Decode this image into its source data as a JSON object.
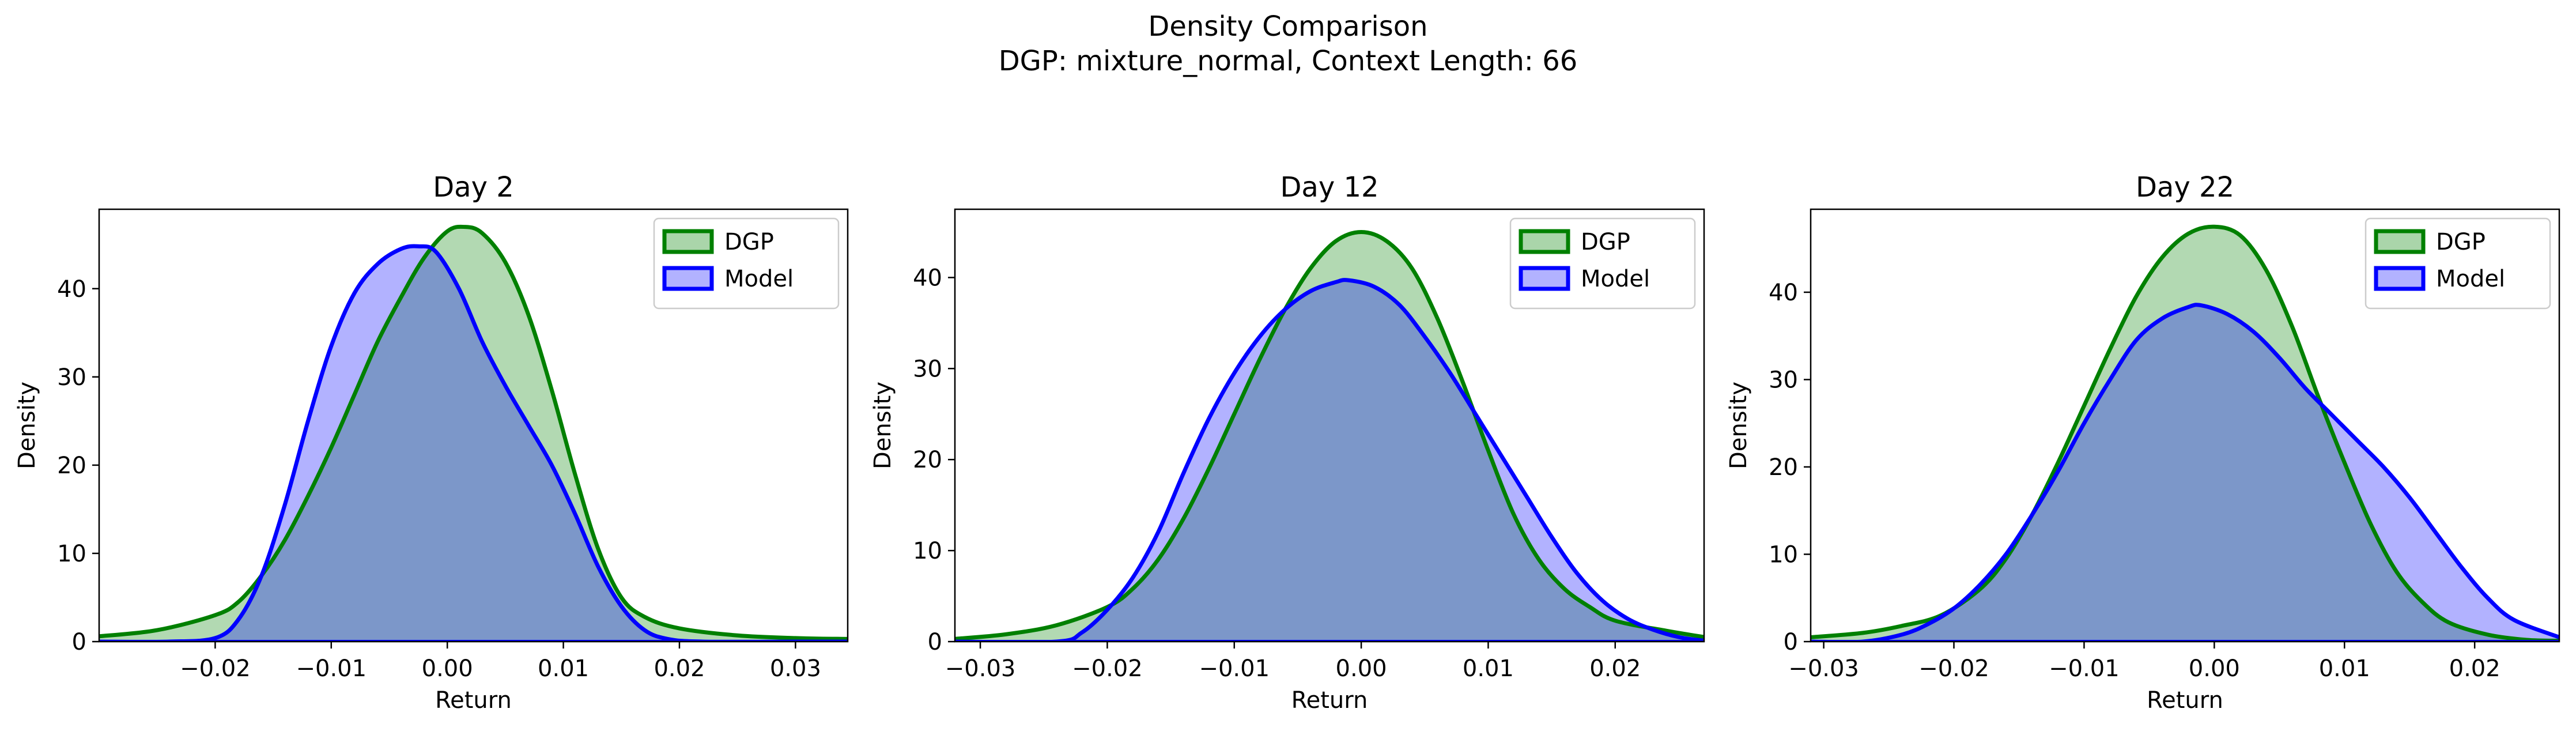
{
  "figure": {
    "title_line1": "Density Comparison",
    "title_line2": "DGP: mixture_normal, Context Length: 66"
  },
  "colors": {
    "dgp_line": "#008000",
    "dgp_fill": "#aad5aa",
    "model_line": "#0000ff",
    "model_fill": "#b2b2ff",
    "overlap_fill": "#7f97c8"
  },
  "chart_data": [
    {
      "type": "area",
      "title": "Day 2",
      "xlabel": "Return",
      "ylabel": "Density",
      "xlim": [
        -0.03,
        0.0345
      ],
      "ylim": [
        0,
        49
      ],
      "xticks": [
        -0.02,
        -0.01,
        0.0,
        0.01,
        0.02,
        0.03
      ],
      "xtick_labels": [
        "−0.02",
        "−0.01",
        "0.00",
        "0.01",
        "0.02",
        "0.03"
      ],
      "yticks": [
        0,
        10,
        20,
        30,
        40
      ],
      "grid": false,
      "legend": "top-right",
      "series": [
        {
          "name": "DGP",
          "x": [
            -0.03,
            -0.025,
            -0.02,
            -0.018,
            -0.016,
            -0.014,
            -0.012,
            -0.01,
            -0.008,
            -0.006,
            -0.004,
            -0.002,
            0.0,
            0.0015,
            0.003,
            0.005,
            0.007,
            0.009,
            0.011,
            0.013,
            0.015,
            0.017,
            0.02,
            0.025,
            0.03,
            0.0345
          ],
          "y": [
            0.6,
            1.3,
            3.0,
            4.5,
            7.5,
            11.5,
            16.5,
            22.0,
            28.0,
            34.0,
            39.0,
            43.5,
            46.5,
            47.0,
            46.3,
            43.0,
            37.0,
            28.5,
            19.0,
            10.5,
            5.0,
            2.8,
            1.5,
            0.7,
            0.4,
            0.3
          ]
        },
        {
          "name": "Model",
          "x": [
            -0.03,
            -0.024,
            -0.02,
            -0.018,
            -0.016,
            -0.014,
            -0.012,
            -0.01,
            -0.008,
            -0.006,
            -0.004,
            -0.0025,
            -0.001,
            0.001,
            0.003,
            0.005,
            0.007,
            0.009,
            0.011,
            0.013,
            0.015,
            0.017,
            0.019,
            0.022,
            0.03,
            0.0345
          ],
          "y": [
            0.0,
            0.0,
            0.4,
            2.5,
            7.5,
            15.5,
            25.0,
            33.5,
            39.5,
            42.8,
            44.5,
            44.8,
            44.2,
            40.0,
            34.0,
            29.0,
            24.5,
            20.0,
            14.5,
            8.5,
            4.0,
            1.3,
            0.3,
            0.0,
            0.0,
            0.0
          ]
        }
      ]
    },
    {
      "type": "area",
      "title": "Day 12",
      "xlabel": "Return",
      "ylabel": "Density",
      "xlim": [
        -0.032,
        0.027
      ],
      "ylim": [
        0,
        47.5
      ],
      "xticks": [
        -0.03,
        -0.02,
        -0.01,
        0.0,
        0.01,
        0.02
      ],
      "xtick_labels": [
        "−0.03",
        "−0.02",
        "−0.01",
        "0.00",
        "0.01",
        "0.02"
      ],
      "yticks": [
        0,
        10,
        20,
        30,
        40
      ],
      "grid": false,
      "legend": "top-right",
      "series": [
        {
          "name": "DGP",
          "x": [
            -0.032,
            -0.028,
            -0.024,
            -0.02,
            -0.018,
            -0.016,
            -0.014,
            -0.012,
            -0.01,
            -0.008,
            -0.006,
            -0.004,
            -0.002,
            0.0,
            0.002,
            0.004,
            0.006,
            0.008,
            0.01,
            0.012,
            0.014,
            0.016,
            0.018,
            0.02,
            0.024,
            0.027
          ],
          "y": [
            0.3,
            0.8,
            1.8,
            3.8,
            5.8,
            9.0,
            13.5,
            19.0,
            25.0,
            31.0,
            36.5,
            41.0,
            44.0,
            45.0,
            44.0,
            41.0,
            35.5,
            28.5,
            21.0,
            14.0,
            9.0,
            5.8,
            3.8,
            2.3,
            1.2,
            0.5
          ]
        },
        {
          "name": "Model",
          "x": [
            -0.032,
            -0.024,
            -0.022,
            -0.02,
            -0.018,
            -0.016,
            -0.014,
            -0.012,
            -0.01,
            -0.008,
            -0.006,
            -0.004,
            -0.002,
            -0.001,
            0.001,
            0.003,
            0.005,
            0.007,
            0.009,
            0.011,
            0.013,
            0.015,
            0.017,
            0.019,
            0.021,
            0.023,
            0.025,
            0.027
          ],
          "y": [
            0.0,
            0.0,
            1.0,
            3.5,
            7.0,
            12.0,
            18.5,
            24.5,
            29.5,
            33.5,
            36.5,
            38.5,
            39.5,
            39.7,
            39.0,
            37.0,
            33.5,
            29.5,
            25.0,
            20.5,
            16.0,
            11.5,
            7.5,
            4.5,
            2.5,
            1.3,
            0.5,
            0.1
          ]
        }
      ]
    },
    {
      "type": "area",
      "title": "Day 22",
      "xlabel": "Return",
      "ylabel": "Density",
      "xlim": [
        -0.031,
        0.0265
      ],
      "ylim": [
        0,
        49.5
      ],
      "xticks": [
        -0.03,
        -0.02,
        -0.01,
        0.0,
        0.01,
        0.02
      ],
      "xtick_labels": [
        "−0.03",
        "−0.02",
        "−0.01",
        "0.00",
        "0.01",
        "0.02"
      ],
      "yticks": [
        0,
        10,
        20,
        30,
        40
      ],
      "grid": false,
      "legend": "top-right",
      "series": [
        {
          "name": "DGP",
          "x": [
            -0.031,
            -0.027,
            -0.024,
            -0.021,
            -0.018,
            -0.016,
            -0.014,
            -0.012,
            -0.01,
            -0.008,
            -0.006,
            -0.004,
            -0.002,
            0.0,
            0.002,
            0.004,
            0.006,
            0.008,
            0.01,
            0.012,
            0.014,
            0.016,
            0.018,
            0.021,
            0.024,
            0.0265
          ],
          "y": [
            0.5,
            1.0,
            1.8,
            3.0,
            6.0,
            9.5,
            14.5,
            20.5,
            27.0,
            33.5,
            39.5,
            44.0,
            46.7,
            47.5,
            46.5,
            42.5,
            36.0,
            28.0,
            20.5,
            13.5,
            8.0,
            4.5,
            2.2,
            0.8,
            0.2,
            0.1
          ]
        },
        {
          "name": "Model",
          "x": [
            -0.031,
            -0.027,
            -0.024,
            -0.022,
            -0.02,
            -0.018,
            -0.016,
            -0.014,
            -0.012,
            -0.01,
            -0.008,
            -0.006,
            -0.004,
            -0.002,
            -0.001,
            0.001,
            0.003,
            0.005,
            0.007,
            0.009,
            0.011,
            0.013,
            0.015,
            0.017,
            0.019,
            0.021,
            0.023,
            0.0265
          ],
          "y": [
            0.0,
            0.0,
            0.8,
            2.0,
            3.8,
            6.5,
            10.0,
            14.5,
            19.5,
            25.0,
            30.0,
            34.5,
            37.0,
            38.3,
            38.5,
            37.5,
            35.5,
            32.5,
            29.0,
            26.0,
            23.0,
            20.0,
            16.5,
            12.5,
            8.5,
            5.0,
            2.5,
            0.5
          ]
        }
      ]
    }
  ]
}
